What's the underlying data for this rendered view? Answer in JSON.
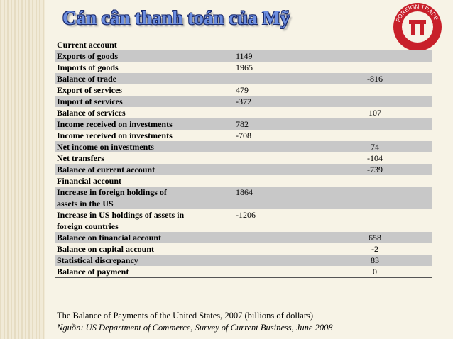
{
  "title": "Cán cân thanh toán của Mỹ",
  "logo": {
    "text": "FOREIGN TRADE"
  },
  "table": {
    "rows": [
      {
        "label": "Current account"
      },
      {
        "label": "Exports of goods",
        "col1": 1149
      },
      {
        "label": "Imports of goods",
        "col1": 1965
      },
      {
        "label": "Balance of trade",
        "col2": -816
      },
      {
        "label": "Export of services",
        "col1": 479
      },
      {
        "label": "Import of services",
        "col1": -372
      },
      {
        "label": "Balance of services",
        "col2": 107
      },
      {
        "label": "Income received on investments",
        "col1": 782
      },
      {
        "label": "Income received on investments",
        "col1": -708
      },
      {
        "label": "Net income on investments",
        "col2": 74
      },
      {
        "label": "Net transfers",
        "col2": -104
      },
      {
        "label": "Balance of current account",
        "col2": -739
      },
      {
        "label": "Financial account"
      },
      {
        "label": "Increase in foreign holdings of assets in the US",
        "col1": 1864
      },
      {
        "label": "Increase in US holdings of assets in foreign countries",
        "col1": -1206
      },
      {
        "label": "Balance on financial account",
        "col2": 658
      },
      {
        "label": "Balance on capital account",
        "col2": -2
      },
      {
        "label": "Statistical discrepancy",
        "col2": 83
      },
      {
        "label": "Balance of payment",
        "col2": 0
      }
    ]
  },
  "caption": "The Balance of Payments of the United States, 2007 (billions of dollars)",
  "source": "Nguồn: US Department of Commerce, Survey of Current Business, June 2008"
}
